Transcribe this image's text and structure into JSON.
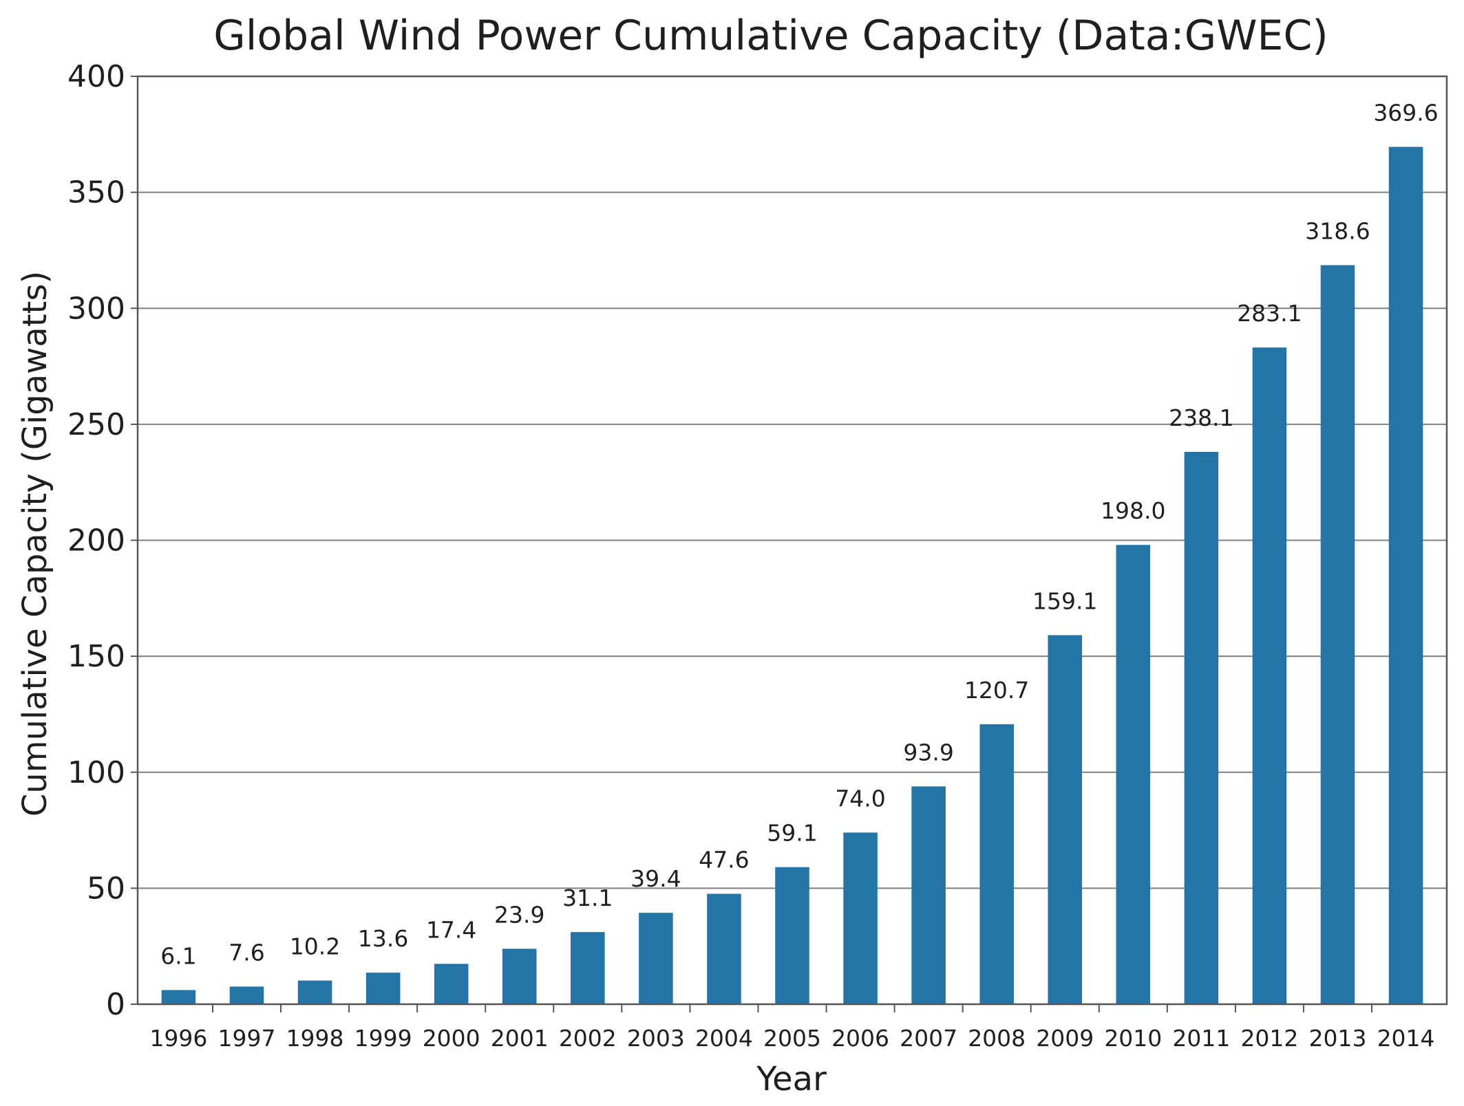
{
  "chart_data": {
    "type": "bar",
    "title": "Global Wind Power Cumulative Capacity (Data:GWEC)",
    "xlabel": "Year",
    "ylabel": "Cumulative Capacity (Gigawatts)",
    "categories": [
      "1996",
      "1997",
      "1998",
      "1999",
      "2000",
      "2001",
      "2002",
      "2003",
      "2004",
      "2005",
      "2006",
      "2007",
      "2008",
      "2009",
      "2010",
      "2011",
      "2012",
      "2013",
      "2014"
    ],
    "values": [
      6.1,
      7.6,
      10.2,
      13.6,
      17.4,
      23.9,
      31.1,
      39.4,
      47.6,
      59.1,
      74.0,
      93.9,
      120.7,
      159.1,
      198.0,
      238.1,
      283.1,
      318.6,
      369.6
    ],
    "value_labels": [
      "6.1",
      "7.6",
      "10.2",
      "13.6",
      "17.4",
      "23.9",
      "31.1",
      "39.4",
      "47.6",
      "59.1",
      "74.0",
      "93.9",
      "120.7",
      "159.1",
      "198.0",
      "238.1",
      "283.1",
      "318.6",
      "369.6"
    ],
    "y_ticks": [
      0,
      50,
      100,
      150,
      200,
      250,
      300,
      350,
      400
    ],
    "ylim": [
      0,
      400
    ],
    "grid": true,
    "legend": "none",
    "bar_color": "#2474a7"
  }
}
